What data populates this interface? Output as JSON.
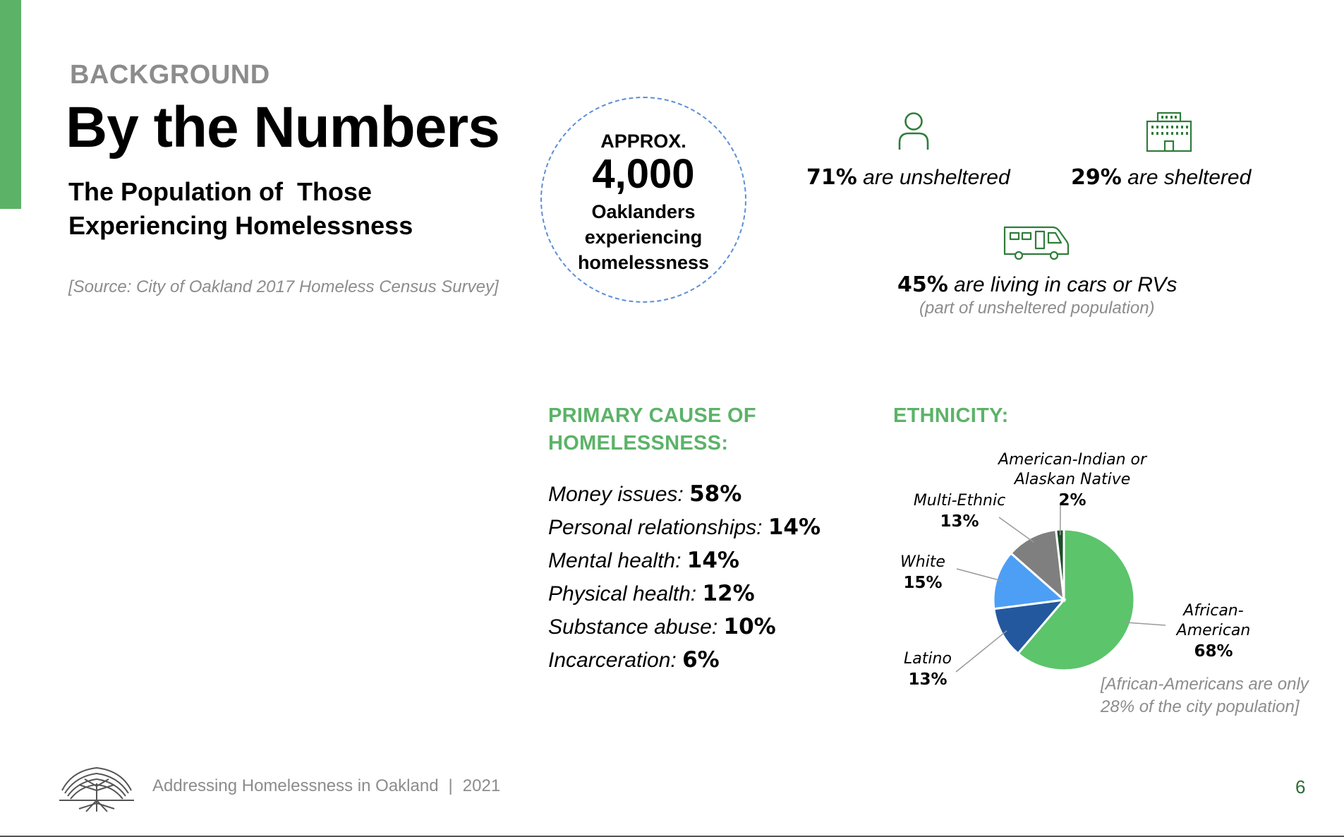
{
  "header": {
    "kicker": "BACKGROUND",
    "title": "By the Numbers",
    "subtitle_line1": "The Population of  Those",
    "subtitle_line2": "Experiencing Homelessness",
    "source": "[Source: City of Oakland 2017 Homeless Census Survey]"
  },
  "total": {
    "prefix": "APPROX.",
    "value": "4,000",
    "desc_line1": "Oaklanders",
    "desc_line2": "experiencing",
    "desc_line3": "homelessness"
  },
  "stats": {
    "unsheltered": {
      "value": "71%",
      "label": "are unsheltered",
      "icon": "person-icon"
    },
    "sheltered": {
      "value": "29%",
      "label": "are sheltered",
      "icon": "building-icon"
    },
    "cars_rvs": {
      "value": "45%",
      "label": "are living in cars or RVs",
      "note": "(part of unsheltered population)",
      "icon": "rv-icon"
    }
  },
  "causes": {
    "heading_line1": "PRIMARY CAUSE OF",
    "heading_line2": "HOMELESSNESS:",
    "items": [
      {
        "label": "Money issues:",
        "value": "58%"
      },
      {
        "label": "Personal relationships:",
        "value": "14%"
      },
      {
        "label": "Mental health:",
        "value": "14%"
      },
      {
        "label": "Physical health:",
        "value": "12%"
      },
      {
        "label": "Substance abuse:",
        "value": "10%"
      },
      {
        "label": "Incarceration:",
        "value": "6%"
      }
    ]
  },
  "ethnicity": {
    "heading": "ETHNICITY:",
    "note_line1": "[African-Americans are only",
    "note_line2": "28% of the city population]"
  },
  "chart_data": {
    "type": "pie",
    "title": "ETHNICITY:",
    "slices": [
      {
        "name": "African-American",
        "name_lines": [
          "African-",
          "American"
        ],
        "value": 68,
        "display": "68%",
        "color": "#5cc46b"
      },
      {
        "name": "Latino",
        "name_lines": [
          "Latino"
        ],
        "value": 13,
        "display": "13%",
        "color": "#23589e"
      },
      {
        "name": "White",
        "name_lines": [
          "White"
        ],
        "value": 15,
        "display": "15%",
        "color": "#4c9ff5"
      },
      {
        "name": "Multi-Ethnic",
        "name_lines": [
          "Multi-Ethnic"
        ],
        "value": 13,
        "display": "13%",
        "color": "#7f7f7f"
      },
      {
        "name": "American-Indian or Alaskan Native",
        "name_lines": [
          "American-Indian or",
          "Alaskan Native"
        ],
        "value": 2,
        "display": "2%",
        "color": "#1f4d2a"
      }
    ]
  },
  "footer": {
    "org_text": "Addressing Homelessness in Oakland",
    "separator": "|",
    "year": "2021",
    "page": "6",
    "logo_icon": "oak-tree-logo-icon"
  },
  "colors": {
    "accent": "#5cb368",
    "muted": "#8c8c8c",
    "circle_border": "#5b8fd8"
  }
}
